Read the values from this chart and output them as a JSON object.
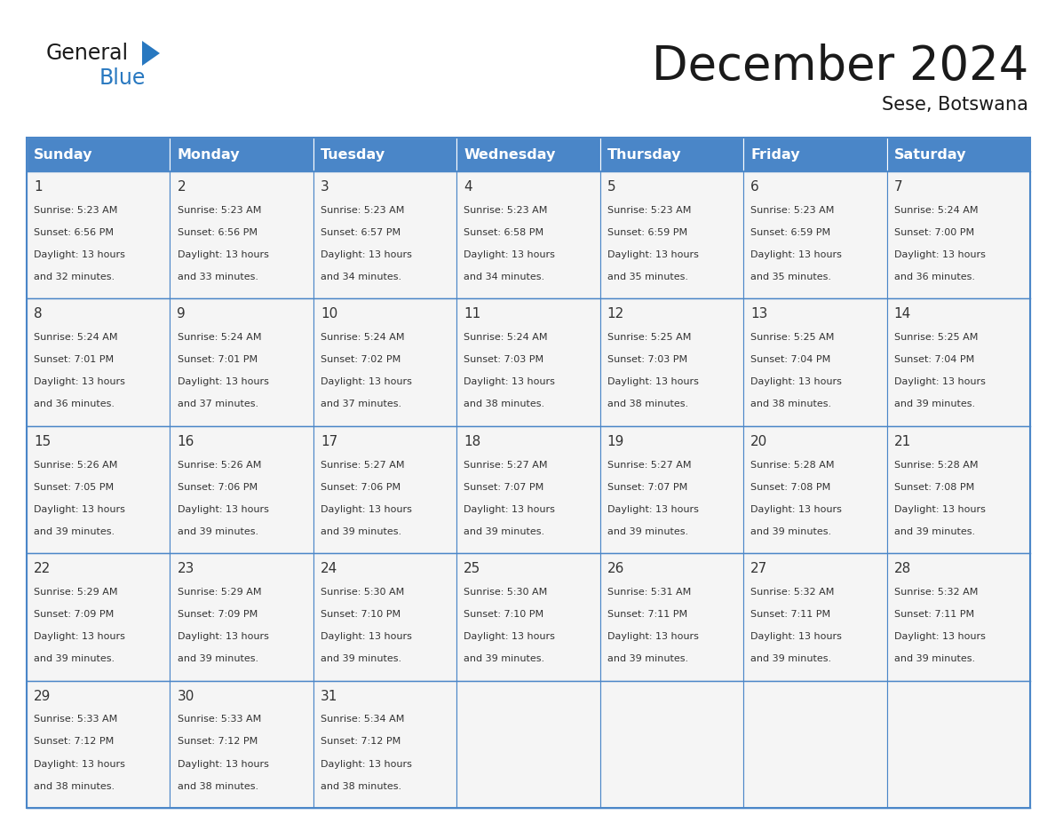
{
  "title": "December 2024",
  "subtitle": "Sese, Botswana",
  "days_of_week": [
    "Sunday",
    "Monday",
    "Tuesday",
    "Wednesday",
    "Thursday",
    "Friday",
    "Saturday"
  ],
  "header_bg_color": "#4a86c8",
  "header_text_color": "#FFFFFF",
  "cell_bg_color": "#f5f5f5",
  "cell_text_color": "#333333",
  "border_color": "#4a86c8",
  "title_color": "#1a1a1a",
  "subtitle_color": "#1a1a1a",
  "logo_general_color": "#1a1a1a",
  "logo_blue_color": "#2878c0",
  "logo_triangle_color": "#2878c0",
  "weeks": [
    [
      {
        "day": 1,
        "sunrise": "5:23 AM",
        "sunset": "6:56 PM",
        "daylight_hours": 13,
        "daylight_minutes": 32
      },
      {
        "day": 2,
        "sunrise": "5:23 AM",
        "sunset": "6:56 PM",
        "daylight_hours": 13,
        "daylight_minutes": 33
      },
      {
        "day": 3,
        "sunrise": "5:23 AM",
        "sunset": "6:57 PM",
        "daylight_hours": 13,
        "daylight_minutes": 34
      },
      {
        "day": 4,
        "sunrise": "5:23 AM",
        "sunset": "6:58 PM",
        "daylight_hours": 13,
        "daylight_minutes": 34
      },
      {
        "day": 5,
        "sunrise": "5:23 AM",
        "sunset": "6:59 PM",
        "daylight_hours": 13,
        "daylight_minutes": 35
      },
      {
        "day": 6,
        "sunrise": "5:23 AM",
        "sunset": "6:59 PM",
        "daylight_hours": 13,
        "daylight_minutes": 35
      },
      {
        "day": 7,
        "sunrise": "5:24 AM",
        "sunset": "7:00 PM",
        "daylight_hours": 13,
        "daylight_minutes": 36
      }
    ],
    [
      {
        "day": 8,
        "sunrise": "5:24 AM",
        "sunset": "7:01 PM",
        "daylight_hours": 13,
        "daylight_minutes": 36
      },
      {
        "day": 9,
        "sunrise": "5:24 AM",
        "sunset": "7:01 PM",
        "daylight_hours": 13,
        "daylight_minutes": 37
      },
      {
        "day": 10,
        "sunrise": "5:24 AM",
        "sunset": "7:02 PM",
        "daylight_hours": 13,
        "daylight_minutes": 37
      },
      {
        "day": 11,
        "sunrise": "5:24 AM",
        "sunset": "7:03 PM",
        "daylight_hours": 13,
        "daylight_minutes": 38
      },
      {
        "day": 12,
        "sunrise": "5:25 AM",
        "sunset": "7:03 PM",
        "daylight_hours": 13,
        "daylight_minutes": 38
      },
      {
        "day": 13,
        "sunrise": "5:25 AM",
        "sunset": "7:04 PM",
        "daylight_hours": 13,
        "daylight_minutes": 38
      },
      {
        "day": 14,
        "sunrise": "5:25 AM",
        "sunset": "7:04 PM",
        "daylight_hours": 13,
        "daylight_minutes": 39
      }
    ],
    [
      {
        "day": 15,
        "sunrise": "5:26 AM",
        "sunset": "7:05 PM",
        "daylight_hours": 13,
        "daylight_minutes": 39
      },
      {
        "day": 16,
        "sunrise": "5:26 AM",
        "sunset": "7:06 PM",
        "daylight_hours": 13,
        "daylight_minutes": 39
      },
      {
        "day": 17,
        "sunrise": "5:27 AM",
        "sunset": "7:06 PM",
        "daylight_hours": 13,
        "daylight_minutes": 39
      },
      {
        "day": 18,
        "sunrise": "5:27 AM",
        "sunset": "7:07 PM",
        "daylight_hours": 13,
        "daylight_minutes": 39
      },
      {
        "day": 19,
        "sunrise": "5:27 AM",
        "sunset": "7:07 PM",
        "daylight_hours": 13,
        "daylight_minutes": 39
      },
      {
        "day": 20,
        "sunrise": "5:28 AM",
        "sunset": "7:08 PM",
        "daylight_hours": 13,
        "daylight_minutes": 39
      },
      {
        "day": 21,
        "sunrise": "5:28 AM",
        "sunset": "7:08 PM",
        "daylight_hours": 13,
        "daylight_minutes": 39
      }
    ],
    [
      {
        "day": 22,
        "sunrise": "5:29 AM",
        "sunset": "7:09 PM",
        "daylight_hours": 13,
        "daylight_minutes": 39
      },
      {
        "day": 23,
        "sunrise": "5:29 AM",
        "sunset": "7:09 PM",
        "daylight_hours": 13,
        "daylight_minutes": 39
      },
      {
        "day": 24,
        "sunrise": "5:30 AM",
        "sunset": "7:10 PM",
        "daylight_hours": 13,
        "daylight_minutes": 39
      },
      {
        "day": 25,
        "sunrise": "5:30 AM",
        "sunset": "7:10 PM",
        "daylight_hours": 13,
        "daylight_minutes": 39
      },
      {
        "day": 26,
        "sunrise": "5:31 AM",
        "sunset": "7:11 PM",
        "daylight_hours": 13,
        "daylight_minutes": 39
      },
      {
        "day": 27,
        "sunrise": "5:32 AM",
        "sunset": "7:11 PM",
        "daylight_hours": 13,
        "daylight_minutes": 39
      },
      {
        "day": 28,
        "sunrise": "5:32 AM",
        "sunset": "7:11 PM",
        "daylight_hours": 13,
        "daylight_minutes": 39
      }
    ],
    [
      {
        "day": 29,
        "sunrise": "5:33 AM",
        "sunset": "7:12 PM",
        "daylight_hours": 13,
        "daylight_minutes": 38
      },
      {
        "day": 30,
        "sunrise": "5:33 AM",
        "sunset": "7:12 PM",
        "daylight_hours": 13,
        "daylight_minutes": 38
      },
      {
        "day": 31,
        "sunrise": "5:34 AM",
        "sunset": "7:12 PM",
        "daylight_hours": 13,
        "daylight_minutes": 38
      },
      null,
      null,
      null,
      null
    ]
  ]
}
